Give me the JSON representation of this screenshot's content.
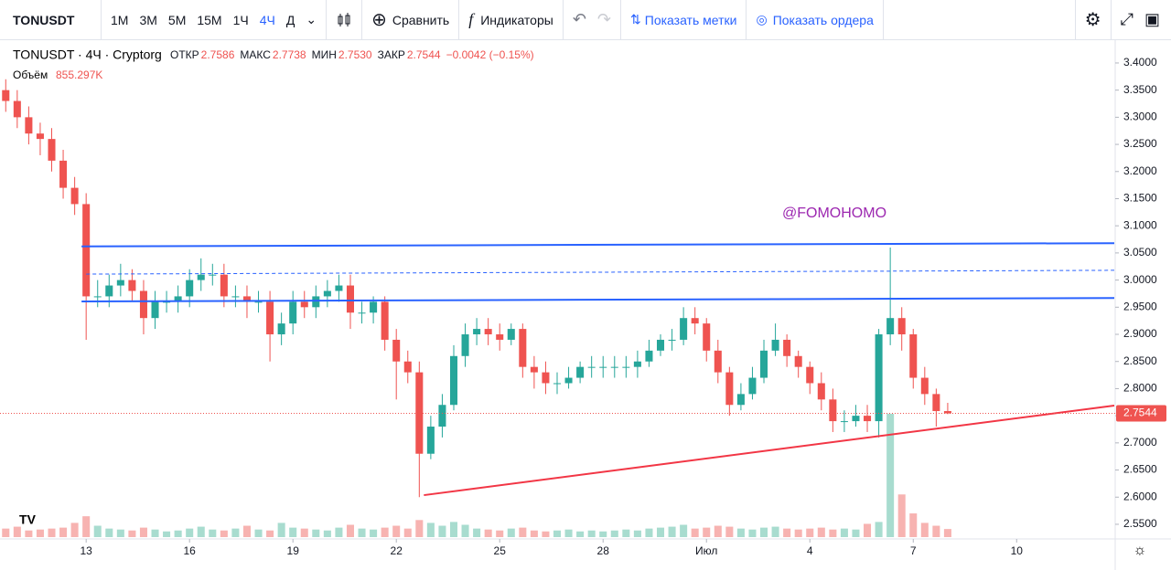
{
  "toolbar": {
    "symbol": "TONUSDT",
    "intervals": [
      "1М",
      "3М",
      "5М",
      "15М",
      "1Ч",
      "4Ч",
      "Д"
    ],
    "active_interval": 5,
    "compare": "Сравнить",
    "indicators": "Индикаторы",
    "show_marks": "Показать метки",
    "show_orders": "Показать ордера"
  },
  "chart_data": {
    "type": "candlestick",
    "title": "TONUSDT · 4Ч · Cryptorg",
    "ohlc_labels": [
      "ОТКР",
      "МАКС",
      "МИН",
      "ЗАКР"
    ],
    "legend_values": [
      "2.7586",
      "2.7738",
      "2.7530",
      "2.7544"
    ],
    "change": "−0.0042 (−0.15%)",
    "up_color": "#26a69a",
    "down_color": "#ef5350",
    "open": [
      3.35,
      3.33,
      3.3,
      3.27,
      3.26,
      3.22,
      3.17,
      3.14,
      2.97,
      2.97,
      2.99,
      3.0,
      2.98,
      2.93,
      2.96,
      2.96,
      2.97,
      3.0,
      3.01,
      3.01,
      2.97,
      2.97,
      2.96,
      2.96,
      2.9,
      2.92,
      2.96,
      2.95,
      2.97,
      2.98,
      2.99,
      2.94,
      2.94,
      2.96,
      2.89,
      2.85,
      2.83,
      2.68,
      2.73,
      2.77,
      2.86,
      2.9,
      2.91,
      2.9,
      2.89,
      2.91,
      2.84,
      2.83,
      2.81,
      2.81,
      2.82,
      2.84,
      2.84,
      2.84,
      2.84,
      2.84,
      2.85,
      2.87,
      2.89,
      2.89,
      2.93,
      2.92,
      2.87,
      2.83,
      2.77,
      2.79,
      2.82,
      2.87,
      2.89,
      2.86,
      2.84,
      2.81,
      2.78,
      2.74,
      2.74,
      2.75,
      2.74,
      2.9,
      2.93,
      2.9,
      2.82,
      2.79,
      2.7586
    ],
    "high": [
      3.37,
      3.35,
      3.32,
      3.29,
      3.28,
      3.24,
      3.19,
      3.16,
      3.0,
      3.01,
      3.03,
      3.02,
      3.0,
      2.98,
      2.98,
      2.99,
      3.02,
      3.04,
      3.03,
      3.03,
      2.99,
      2.99,
      2.98,
      2.98,
      2.94,
      2.98,
      2.98,
      2.99,
      3.0,
      3.01,
      3.01,
      2.96,
      2.97,
      2.97,
      2.91,
      2.87,
      2.85,
      2.75,
      2.79,
      2.88,
      2.92,
      2.93,
      2.93,
      2.92,
      2.92,
      2.92,
      2.86,
      2.85,
      2.83,
      2.84,
      2.85,
      2.86,
      2.86,
      2.86,
      2.86,
      2.87,
      2.89,
      2.9,
      2.91,
      2.95,
      2.95,
      2.93,
      2.89,
      2.84,
      2.81,
      2.84,
      2.89,
      2.92,
      2.9,
      2.87,
      2.85,
      2.83,
      2.8,
      2.76,
      2.77,
      2.77,
      2.91,
      3.06,
      2.95,
      2.91,
      2.84,
      2.8,
      2.7738
    ],
    "low": [
      3.31,
      3.28,
      3.25,
      3.23,
      3.2,
      3.15,
      3.12,
      2.89,
      2.95,
      2.95,
      2.97,
      2.96,
      2.9,
      2.91,
      2.94,
      2.94,
      2.95,
      2.98,
      2.99,
      2.95,
      2.95,
      2.93,
      2.94,
      2.85,
      2.88,
      2.9,
      2.93,
      2.93,
      2.95,
      2.96,
      2.91,
      2.92,
      2.92,
      2.87,
      2.78,
      2.81,
      2.6,
      2.67,
      2.71,
      2.76,
      2.84,
      2.88,
      2.88,
      2.87,
      2.88,
      2.82,
      2.8,
      2.79,
      2.79,
      2.8,
      2.81,
      2.82,
      2.82,
      2.82,
      2.82,
      2.82,
      2.84,
      2.86,
      2.87,
      2.88,
      2.9,
      2.85,
      2.81,
      2.75,
      2.76,
      2.78,
      2.81,
      2.86,
      2.84,
      2.82,
      2.79,
      2.76,
      2.72,
      2.72,
      2.73,
      2.72,
      2.71,
      2.88,
      2.87,
      2.8,
      2.77,
      2.73,
      2.753
    ],
    "close": [
      3.33,
      3.3,
      3.27,
      3.26,
      3.22,
      3.17,
      3.14,
      2.97,
      2.97,
      2.99,
      3.0,
      2.98,
      2.93,
      2.96,
      2.96,
      2.97,
      3.0,
      3.01,
      3.01,
      2.97,
      2.97,
      2.96,
      2.96,
      2.9,
      2.92,
      2.96,
      2.95,
      2.97,
      2.98,
      2.99,
      2.94,
      2.94,
      2.96,
      2.89,
      2.85,
      2.83,
      2.68,
      2.73,
      2.77,
      2.86,
      2.9,
      2.91,
      2.9,
      2.89,
      2.91,
      2.84,
      2.83,
      2.81,
      2.81,
      2.82,
      2.84,
      2.84,
      2.84,
      2.84,
      2.84,
      2.85,
      2.87,
      2.89,
      2.89,
      2.93,
      2.92,
      2.87,
      2.83,
      2.77,
      2.79,
      2.82,
      2.87,
      2.89,
      2.86,
      2.84,
      2.81,
      2.78,
      2.74,
      2.74,
      2.75,
      2.74,
      2.9,
      2.93,
      2.9,
      2.82,
      2.79,
      2.7586,
      2.7544
    ],
    "volume": {
      "name": "Объём",
      "last_value_label": "855.297K",
      "up_color": "#a8dccf",
      "down_color": "#f7b3b1",
      "values": [
        900,
        1100,
        700,
        800,
        900,
        1000,
        1500,
        2200,
        1200,
        900,
        800,
        700,
        1000,
        800,
        600,
        700,
        900,
        1100,
        800,
        700,
        900,
        1200,
        800,
        700,
        1500,
        1000,
        900,
        800,
        700,
        1000,
        1300,
        900,
        800,
        1000,
        1200,
        900,
        1800,
        1500,
        1200,
        1600,
        1300,
        900,
        800,
        700,
        900,
        1000,
        700,
        600,
        700,
        800,
        600,
        700,
        600,
        700,
        800,
        700,
        900,
        1000,
        1100,
        1300,
        900,
        1000,
        1200,
        1100,
        900,
        800,
        1000,
        1100,
        900,
        800,
        900,
        1000,
        800,
        900,
        800,
        1400,
        1600,
        13000,
        4500,
        2500,
        1500,
        1200,
        855.297
      ]
    },
    "xlim": [
      -0.5,
      96.5
    ],
    "xticks": [
      {
        "value": 7,
        "label": "13"
      },
      {
        "value": 16,
        "label": "16"
      },
      {
        "value": 25,
        "label": "19"
      },
      {
        "value": 34,
        "label": "22"
      },
      {
        "value": 43,
        "label": "25"
      },
      {
        "value": 52,
        "label": "28"
      },
      {
        "value": 61,
        "label": "Июл"
      },
      {
        "value": 70,
        "label": "4"
      },
      {
        "value": 79,
        "label": "7"
      },
      {
        "value": 88,
        "label": "10"
      }
    ],
    "ylim": [
      2.523,
      3.442
    ],
    "yticks": [
      {
        "value": 2.55,
        "label": "2.5500"
      },
      {
        "value": 2.6,
        "label": "2.6000"
      },
      {
        "value": 2.65,
        "label": "2.6500"
      },
      {
        "value": 2.7,
        "label": "2.7000"
      },
      {
        "value": 2.75,
        "label": "2.7500"
      },
      {
        "value": 2.8,
        "label": "2.8000"
      },
      {
        "value": 2.85,
        "label": "2.8500"
      },
      {
        "value": 2.9,
        "label": "2.9000"
      },
      {
        "value": 2.95,
        "label": "2.9500"
      },
      {
        "value": 3.0,
        "label": "3.0000"
      },
      {
        "value": 3.05,
        "label": "3.0500"
      },
      {
        "value": 3.1,
        "label": "3.1000"
      },
      {
        "value": 3.15,
        "label": "3.1500"
      },
      {
        "value": 3.2,
        "label": "3.2000"
      },
      {
        "value": 3.25,
        "label": "3.2500"
      },
      {
        "value": 3.3,
        "label": "3.3000"
      },
      {
        "value": 3.35,
        "label": "3.3500"
      },
      {
        "value": 3.4,
        "label": "3.4000"
      }
    ],
    "grid": false,
    "last_price_line": true,
    "drawings": [
      {
        "color": "#2962ff",
        "dashed": false,
        "points": [
          [
            6.6,
            3.062
          ],
          [
            96.5,
            3.068
          ]
        ]
      },
      {
        "color": "#2962ff",
        "dashed": true,
        "points": [
          [
            7,
            3.011
          ],
          [
            96.5,
            3.018
          ]
        ]
      },
      {
        "color": "#2962ff",
        "dashed": false,
        "points": [
          [
            6.6,
            2.9606
          ],
          [
            96.5,
            2.967
          ]
        ]
      },
      {
        "color": "#f23645",
        "dashed": false,
        "points": [
          [
            36.4,
            2.6037
          ],
          [
            96.5,
            2.7687
          ]
        ]
      }
    ],
    "annotation": "@FOMOHOMO"
  }
}
